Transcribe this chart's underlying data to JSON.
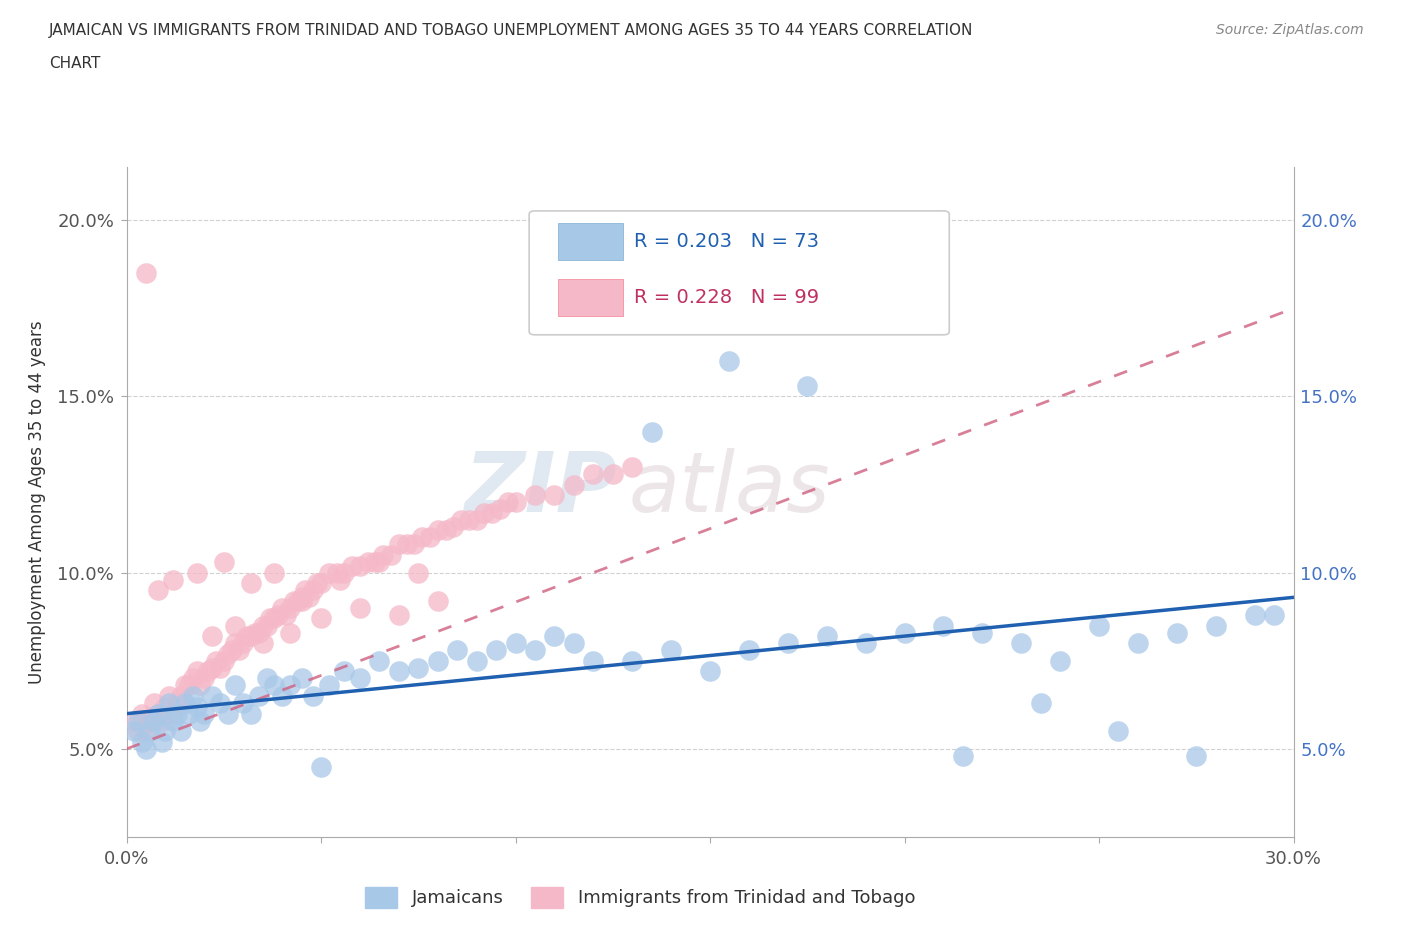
{
  "title_line1": "JAMAICAN VS IMMIGRANTS FROM TRINIDAD AND TOBAGO UNEMPLOYMENT AMONG AGES 35 TO 44 YEARS CORRELATION",
  "title_line2": "CHART",
  "source": "Source: ZipAtlas.com",
  "ylabel": "Unemployment Among Ages 35 to 44 years",
  "xlim": [
    0.0,
    0.3
  ],
  "ylim": [
    0.025,
    0.215
  ],
  "xticks": [
    0.0,
    0.05,
    0.1,
    0.15,
    0.2,
    0.25,
    0.3
  ],
  "yticks": [
    0.05,
    0.1,
    0.15,
    0.2
  ],
  "ytick_labels": [
    "5.0%",
    "10.0%",
    "15.0%",
    "20.0%"
  ],
  "blue_color": "#A8C8E8",
  "pink_color": "#F5B8C8",
  "blue_line_color": "#2060B0",
  "pink_line_color": "#D06080",
  "R_blue": 0.203,
  "N_blue": 73,
  "R_pink": 0.228,
  "N_pink": 99,
  "legend_labels": [
    "Jamaicans",
    "Immigrants from Trinidad and Tobago"
  ],
  "watermark_zip": "ZIP",
  "watermark_atlas": "atlas",
  "blue_trend_x0": 0.0,
  "blue_trend_y0": 0.06,
  "blue_trend_x1": 0.3,
  "blue_trend_y1": 0.093,
  "pink_trend_x0": 0.0,
  "pink_trend_y0": 0.05,
  "pink_trend_x1": 0.3,
  "pink_trend_y1": 0.175,
  "blue_x": [
    0.002,
    0.003,
    0.004,
    0.005,
    0.006,
    0.007,
    0.008,
    0.009,
    0.01,
    0.011,
    0.012,
    0.013,
    0.014,
    0.015,
    0.016,
    0.017,
    0.018,
    0.019,
    0.02,
    0.022,
    0.024,
    0.026,
    0.028,
    0.03,
    0.032,
    0.034,
    0.036,
    0.038,
    0.04,
    0.042,
    0.045,
    0.048,
    0.052,
    0.056,
    0.06,
    0.065,
    0.07,
    0.075,
    0.08,
    0.085,
    0.09,
    0.095,
    0.1,
    0.105,
    0.11,
    0.115,
    0.12,
    0.13,
    0.14,
    0.15,
    0.16,
    0.17,
    0.18,
    0.19,
    0.2,
    0.21,
    0.22,
    0.23,
    0.24,
    0.25,
    0.26,
    0.27,
    0.28,
    0.29,
    0.295,
    0.135,
    0.155,
    0.175,
    0.215,
    0.235,
    0.255,
    0.275,
    0.05
  ],
  "blue_y": [
    0.055,
    0.058,
    0.052,
    0.05,
    0.055,
    0.058,
    0.06,
    0.052,
    0.055,
    0.063,
    0.058,
    0.06,
    0.055,
    0.063,
    0.06,
    0.065,
    0.062,
    0.058,
    0.06,
    0.065,
    0.063,
    0.06,
    0.068,
    0.063,
    0.06,
    0.065,
    0.07,
    0.068,
    0.065,
    0.068,
    0.07,
    0.065,
    0.068,
    0.072,
    0.07,
    0.075,
    0.072,
    0.073,
    0.075,
    0.078,
    0.075,
    0.078,
    0.08,
    0.078,
    0.082,
    0.08,
    0.075,
    0.075,
    0.078,
    0.072,
    0.078,
    0.08,
    0.082,
    0.08,
    0.083,
    0.085,
    0.083,
    0.08,
    0.075,
    0.085,
    0.08,
    0.083,
    0.085,
    0.088,
    0.088,
    0.14,
    0.16,
    0.153,
    0.048,
    0.063,
    0.055,
    0.048,
    0.045
  ],
  "pink_x": [
    0.002,
    0.003,
    0.004,
    0.005,
    0.006,
    0.007,
    0.008,
    0.009,
    0.01,
    0.011,
    0.012,
    0.013,
    0.014,
    0.015,
    0.016,
    0.017,
    0.018,
    0.019,
    0.02,
    0.021,
    0.022,
    0.023,
    0.024,
    0.025,
    0.026,
    0.027,
    0.028,
    0.029,
    0.03,
    0.031,
    0.032,
    0.033,
    0.034,
    0.035,
    0.036,
    0.037,
    0.038,
    0.039,
    0.04,
    0.041,
    0.042,
    0.043,
    0.044,
    0.045,
    0.046,
    0.047,
    0.048,
    0.049,
    0.05,
    0.052,
    0.054,
    0.056,
    0.058,
    0.06,
    0.062,
    0.064,
    0.066,
    0.068,
    0.07,
    0.072,
    0.074,
    0.076,
    0.078,
    0.08,
    0.082,
    0.084,
    0.086,
    0.088,
    0.09,
    0.092,
    0.094,
    0.096,
    0.098,
    0.1,
    0.105,
    0.11,
    0.115,
    0.12,
    0.125,
    0.13,
    0.008,
    0.012,
    0.018,
    0.025,
    0.032,
    0.038,
    0.045,
    0.055,
    0.065,
    0.075,
    0.022,
    0.028,
    0.035,
    0.042,
    0.05,
    0.06,
    0.07,
    0.08,
    0.005
  ],
  "pink_y": [
    0.058,
    0.055,
    0.06,
    0.055,
    0.058,
    0.063,
    0.06,
    0.058,
    0.062,
    0.065,
    0.06,
    0.063,
    0.065,
    0.068,
    0.068,
    0.07,
    0.072,
    0.068,
    0.07,
    0.072,
    0.073,
    0.075,
    0.073,
    0.075,
    0.077,
    0.078,
    0.08,
    0.078,
    0.08,
    0.082,
    0.082,
    0.083,
    0.083,
    0.085,
    0.085,
    0.087,
    0.087,
    0.088,
    0.09,
    0.088,
    0.09,
    0.092,
    0.092,
    0.093,
    0.095,
    0.093,
    0.095,
    0.097,
    0.097,
    0.1,
    0.1,
    0.1,
    0.102,
    0.102,
    0.103,
    0.103,
    0.105,
    0.105,
    0.108,
    0.108,
    0.108,
    0.11,
    0.11,
    0.112,
    0.112,
    0.113,
    0.115,
    0.115,
    0.115,
    0.117,
    0.117,
    0.118,
    0.12,
    0.12,
    0.122,
    0.122,
    0.125,
    0.128,
    0.128,
    0.13,
    0.095,
    0.098,
    0.1,
    0.103,
    0.097,
    0.1,
    0.092,
    0.098,
    0.103,
    0.1,
    0.082,
    0.085,
    0.08,
    0.083,
    0.087,
    0.09,
    0.088,
    0.092,
    0.185
  ]
}
